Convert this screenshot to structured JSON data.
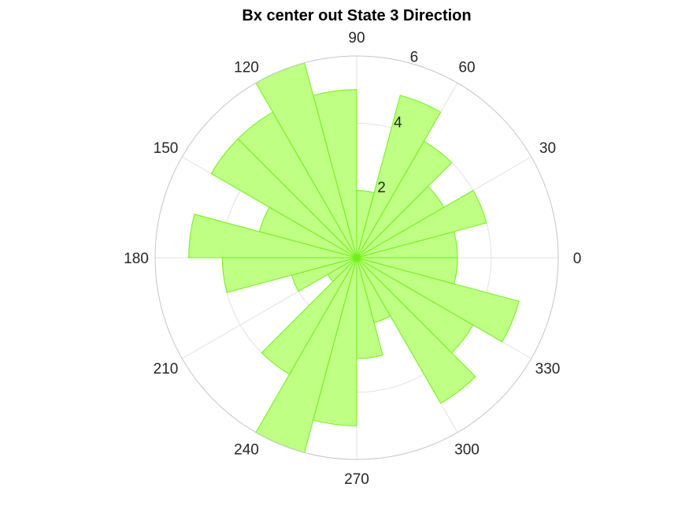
{
  "chart_data": {
    "type": "polar-histogram",
    "title": "Bx  center out State 3 Direction",
    "theta_ticks": [
      "0",
      "30",
      "60",
      "90",
      "120",
      "150",
      "180",
      "210",
      "240",
      "270",
      "300",
      "330"
    ],
    "r_ticks": [
      "2",
      "4",
      "6"
    ],
    "rlim": [
      0,
      6
    ],
    "bin_width_deg": 15,
    "bins": [
      {
        "theta_start": 0,
        "value": 3
      },
      {
        "theta_start": 15,
        "value": 4
      },
      {
        "theta_start": 30,
        "value": 3
      },
      {
        "theta_start": 45,
        "value": 4
      },
      {
        "theta_start": 60,
        "value": 5
      },
      {
        "theta_start": 75,
        "value": 2
      },
      {
        "theta_start": 90,
        "value": 5
      },
      {
        "theta_start": 105,
        "value": 6
      },
      {
        "theta_start": 120,
        "value": 5
      },
      {
        "theta_start": 135,
        "value": 5
      },
      {
        "theta_start": 150,
        "value": 3
      },
      {
        "theta_start": 165,
        "value": 5
      },
      {
        "theta_start": 180,
        "value": 4
      },
      {
        "theta_start": 195,
        "value": 2
      },
      {
        "theta_start": 210,
        "value": 1
      },
      {
        "theta_start": 225,
        "value": 4
      },
      {
        "theta_start": 240,
        "value": 6
      },
      {
        "theta_start": 255,
        "value": 5
      },
      {
        "theta_start": 270,
        "value": 3
      },
      {
        "theta_start": 285,
        "value": 2
      },
      {
        "theta_start": 300,
        "value": 5
      },
      {
        "theta_start": 315,
        "value": 4
      },
      {
        "theta_start": 330,
        "value": 5
      },
      {
        "theta_start": 345,
        "value": 3
      }
    ],
    "grid": true,
    "colors": {
      "fill": "#b9ff7a",
      "edge": "#73ef19",
      "grid": "#e2e2e2",
      "outer_ring": "#c6c6c6",
      "text": "#262626"
    }
  }
}
